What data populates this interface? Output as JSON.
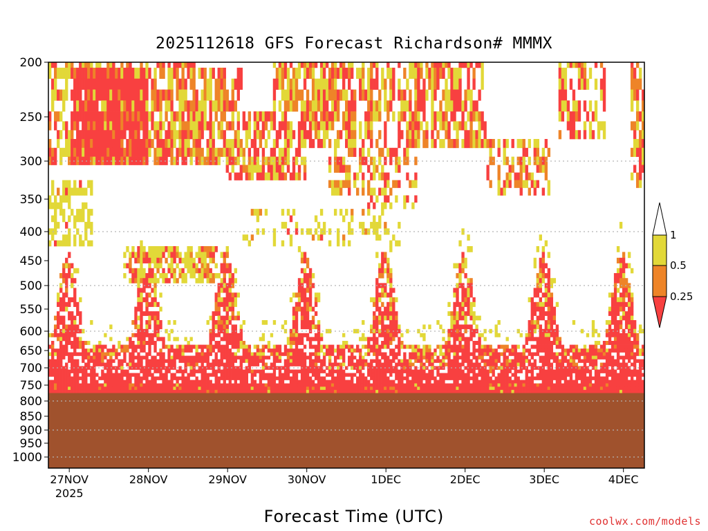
{
  "chart_data": {
    "type": "heatmap",
    "title": "2025112618 GFS Forecast Richardson# MMMX",
    "xlabel": "Forecast Time (UTC)",
    "credit": "coolwx.com/models",
    "y_axis": {
      "label": "",
      "scale": "pressure (hPa), inverted, log-like",
      "ticks": [
        200,
        250,
        300,
        350,
        400,
        450,
        500,
        550,
        600,
        650,
        700,
        750,
        800,
        850,
        900,
        950,
        1000
      ],
      "dotted_gridlines": [
        300,
        400,
        500,
        600,
        700,
        800,
        900,
        1000
      ]
    },
    "x_axis": {
      "ticks": [
        "27NOV",
        "28NOV",
        "29NOV",
        "30NOV",
        "1DEC",
        "2DEC",
        "3DEC",
        "4DEC"
      ],
      "year_label": "2025",
      "range": [
        "2025-11-26T18Z",
        "2025-12-04T06Z"
      ]
    },
    "legend": {
      "position": "right",
      "labels": [
        "1",
        "0.5",
        "0.25"
      ],
      "bins": [
        {
          "range": "> 1",
          "color": "#ffffff"
        },
        {
          "range": "0.5 - 1",
          "color": "#e2d838"
        },
        {
          "range": "0.25 - 0.5",
          "color": "#ee8428"
        },
        {
          "range": "< 0.25",
          "color": "#f84040"
        }
      ]
    },
    "below_ground": {
      "top_hPa": 775,
      "color": "#a0522d"
    },
    "features": [
      {
        "desc": "upper-level low Ri band",
        "x_start": "27NOV00Z",
        "x_end": "28NOV12Z",
        "p_top": 210,
        "p_bottom": 300,
        "value": "< 0.25"
      },
      {
        "desc": "mid-level Ri cluster",
        "x_start": "28NOV00Z",
        "x_end": "28NOV21Z",
        "p_top": 430,
        "p_bottom": 490,
        "value": "0.25 - 1"
      },
      {
        "desc": "daily boundary-layer low Ri pulses",
        "times": [
          "27NOV00Z",
          "28NOV00Z",
          "29NOV00Z",
          "30NOV00Z",
          "1DEC00Z",
          "2DEC00Z",
          "3DEC00Z",
          "4DEC00Z"
        ],
        "p_top": 550,
        "p_bottom": 775,
        "value": "< 0.25"
      }
    ]
  }
}
